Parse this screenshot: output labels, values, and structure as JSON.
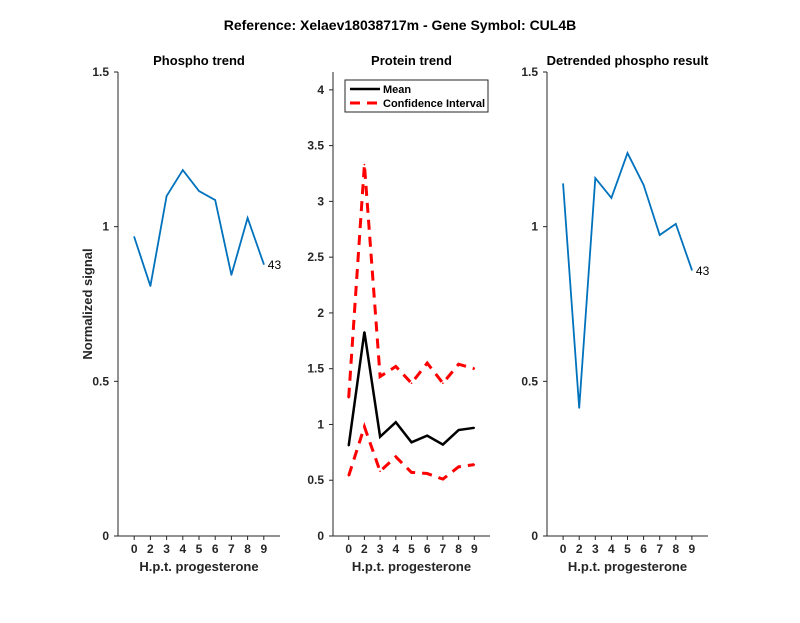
{
  "suptitle": "Reference:  Xelaev18038717m - Gene Symbol:  CUL4B",
  "chart_data": [
    {
      "type": "line",
      "title": "Phospho trend",
      "xlabel": "H.p.t. progesterone",
      "ylabel": "Normalized signal",
      "categories": [
        "0",
        "2",
        "3",
        "4",
        "5",
        "6",
        "7",
        "8",
        "9"
      ],
      "ylim": [
        0,
        1.5
      ],
      "yticks": [
        "0",
        "0.5",
        "1",
        "1.5"
      ],
      "ytick_values": [
        0,
        0.5,
        1,
        1.5
      ],
      "annotation": "43",
      "series": [
        {
          "name": "Phospho",
          "color": "#0072BD",
          "dash": false,
          "values": [
            0.967,
            0.808,
            1.099,
            1.183,
            1.115,
            1.086,
            0.844,
            1.028,
            0.879
          ]
        }
      ]
    },
    {
      "type": "line",
      "title": "Protein trend",
      "xlabel": "H.p.t. progesterone",
      "ylabel": "",
      "categories": [
        "0",
        "2",
        "3",
        "4",
        "5",
        "6",
        "7",
        "8",
        "9"
      ],
      "ylim": [
        0,
        4.16
      ],
      "yticks": [
        "0",
        "0.5",
        "1",
        "1.5",
        "2",
        "2.5",
        "3",
        "3.5",
        "4"
      ],
      "ytick_values": [
        0,
        0.5,
        1,
        1.5,
        2,
        2.5,
        3,
        3.5,
        4
      ],
      "legend": [
        "Mean",
        "Confidence Interval"
      ],
      "legend_position": "top-left",
      "series": [
        {
          "name": "Mean",
          "color": "#000000",
          "dash": false,
          "values": [
            0.81,
            1.83,
            0.89,
            1.02,
            0.84,
            0.9,
            0.82,
            0.95,
            0.97
          ]
        },
        {
          "name": "Confidence Interval upper",
          "color": "#FF0000",
          "dash": true,
          "values": [
            1.24,
            3.33,
            1.43,
            1.52,
            1.37,
            1.55,
            1.37,
            1.54,
            1.5
          ]
        },
        {
          "name": "Confidence Interval lower",
          "color": "#FF0000",
          "dash": true,
          "values": [
            0.54,
            0.98,
            0.58,
            0.71,
            0.57,
            0.56,
            0.51,
            0.62,
            0.64
          ]
        }
      ]
    },
    {
      "type": "line",
      "title": "Detrended phospho result",
      "xlabel": "H.p.t. progesterone",
      "ylabel": "",
      "categories": [
        "0",
        "2",
        "3",
        "4",
        "5",
        "6",
        "7",
        "8",
        "9"
      ],
      "ylim": [
        0,
        1.5
      ],
      "yticks": [
        "0",
        "0.5",
        "1",
        "1.5"
      ],
      "ytick_values": [
        0,
        0.5,
        1,
        1.5
      ],
      "annotation": "43",
      "series": [
        {
          "name": "Detrended",
          "color": "#0072BD",
          "dash": false,
          "values": [
            1.138,
            0.414,
            1.157,
            1.093,
            1.238,
            1.135,
            0.973,
            1.009,
            0.86
          ]
        }
      ]
    }
  ]
}
